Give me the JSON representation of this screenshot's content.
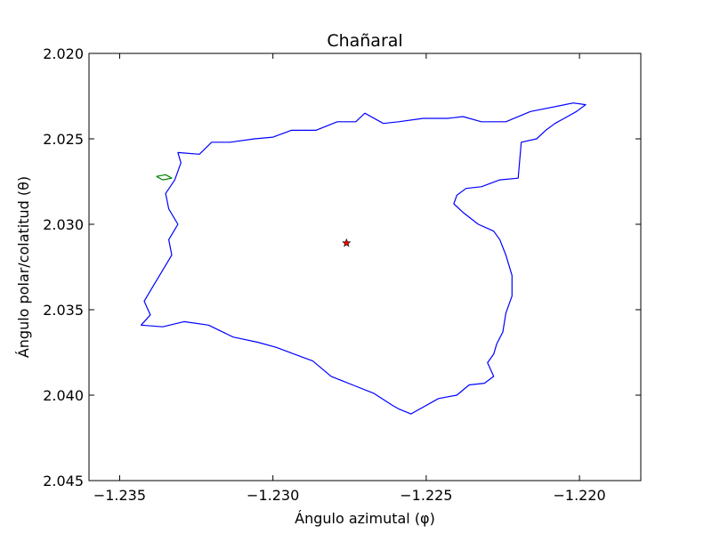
{
  "chart_data": {
    "type": "line",
    "title": "Chañaral",
    "xlabel": "Ángulo azimutal (φ)",
    "ylabel": "Ángulo polar/colatitud (θ)",
    "xlim": [
      -1.236,
      -1.218
    ],
    "ylim": [
      2.045,
      2.02
    ],
    "y_inverted": true,
    "grid": false,
    "xticks": [
      -1.235,
      -1.23,
      -1.225,
      -1.22
    ],
    "xtick_labels": [
      "−1.235",
      "−1.230",
      "−1.225",
      "−1.220"
    ],
    "yticks": [
      2.02,
      2.025,
      2.03,
      2.035,
      2.04,
      2.045
    ],
    "ytick_labels": [
      "2.020",
      "2.025",
      "2.030",
      "2.035",
      "2.040",
      "2.045"
    ],
    "series": [
      {
        "color": "#0000ff",
        "style": "line",
        "x": [
          -1.2264,
          -1.2259,
          -1.2251,
          -1.2243,
          -1.2238,
          -1.2232,
          -1.2228,
          -1.2224,
          -1.2216,
          -1.2202,
          -1.2198,
          -1.2201,
          -1.2205,
          -1.2208,
          -1.2211,
          -1.2214,
          -1.2219,
          -1.222,
          -1.2226,
          -1.2232,
          -1.2237,
          -1.224,
          -1.2241,
          -1.2238,
          -1.2233,
          -1.2228,
          -1.2226,
          -1.2224,
          -1.2222,
          -1.2222,
          -1.2224,
          -1.2225,
          -1.2227,
          -1.2228,
          -1.223,
          -1.2228,
          -1.2231,
          -1.2236,
          -1.224,
          -1.2246,
          -1.2255,
          -1.2259,
          -1.2261,
          -1.2267,
          -1.2274,
          -1.2281,
          -1.2287,
          -1.2293,
          -1.2299,
          -1.2305,
          -1.2313,
          -1.2321,
          -1.2329,
          -1.2336,
          -1.2343,
          -1.234,
          -1.2342,
          -1.2339,
          -1.2336,
          -1.2333,
          -1.2334,
          -1.2331,
          -1.2334,
          -1.2335,
          -1.2332,
          -1.233,
          -1.2331,
          -1.2324,
          -1.232,
          -1.2314,
          -1.2306,
          -1.23,
          -1.2294,
          -1.2286,
          -1.2279,
          -1.2273,
          -1.227,
          -1.2264
        ],
        "y": [
          2.0241,
          2.024,
          2.0238,
          2.0238,
          2.0237,
          2.024,
          2.024,
          2.024,
          2.0234,
          2.0229,
          2.023,
          2.0234,
          2.0238,
          2.0241,
          2.0245,
          2.025,
          2.0252,
          2.0273,
          2.0274,
          2.0278,
          2.0279,
          2.0283,
          2.0288,
          2.0293,
          2.03,
          2.0304,
          2.0309,
          2.0318,
          2.033,
          2.0342,
          2.0352,
          2.0363,
          2.037,
          2.0376,
          2.0381,
          2.0389,
          2.0393,
          2.0394,
          2.04,
          2.0402,
          2.0411,
          2.0408,
          2.0406,
          2.0399,
          2.0394,
          2.0389,
          2.038,
          2.0376,
          2.0372,
          2.0369,
          2.0366,
          2.0359,
          2.0357,
          2.036,
          2.0359,
          2.0353,
          2.0345,
          2.0336,
          2.0327,
          2.0318,
          2.0309,
          2.03,
          2.0291,
          2.0282,
          2.0274,
          2.0264,
          2.0258,
          2.0259,
          2.0252,
          2.0252,
          2.025,
          2.0249,
          2.0245,
          2.0245,
          2.024,
          2.024,
          2.0235,
          2.0241
        ]
      },
      {
        "color": "#008000",
        "style": "line",
        "x": [
          -1.2338,
          -1.2335,
          -1.2333,
          -1.2336,
          -1.2338
        ],
        "y": [
          2.0272,
          2.0271,
          2.0273,
          2.0274,
          2.0272
        ]
      },
      {
        "color": "#ff0000",
        "style": "marker",
        "marker": "star",
        "x": [
          -1.2276
        ],
        "y": [
          2.0311
        ]
      }
    ]
  }
}
